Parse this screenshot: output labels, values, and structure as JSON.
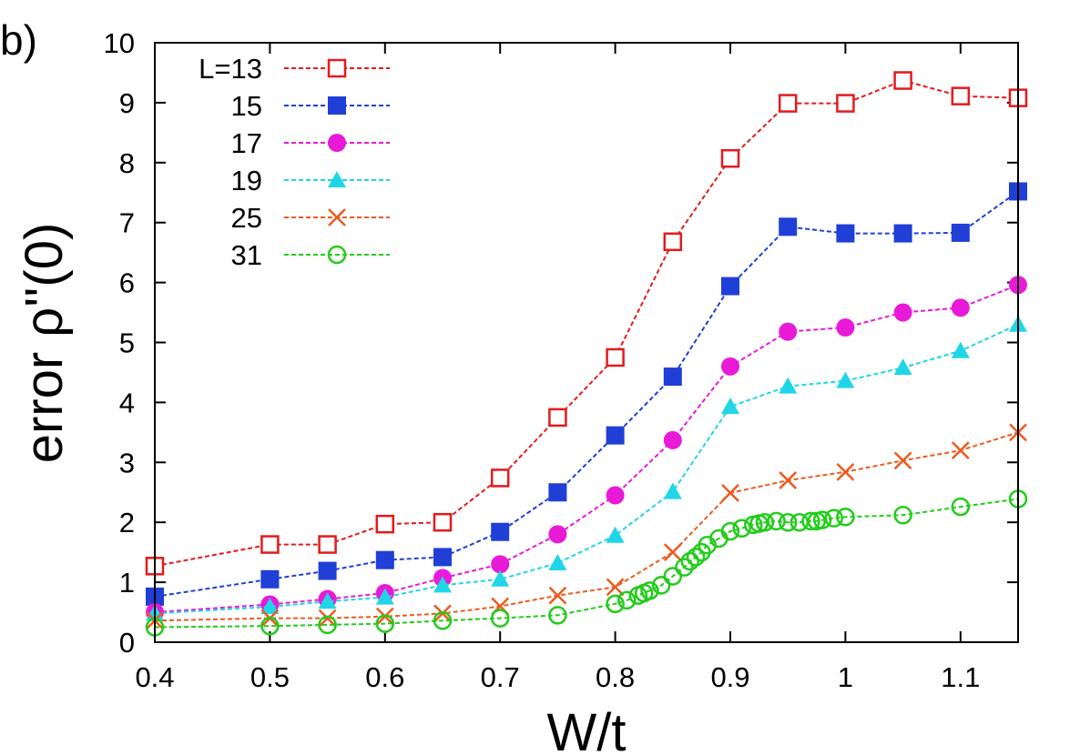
{
  "panel_label": "b)",
  "chart_data": {
    "type": "line",
    "xlabel": "W/t",
    "ylabel": "error ρ''(0)",
    "xlim": [
      0.4,
      1.15
    ],
    "ylim": [
      0,
      10
    ],
    "xticks": [
      0.4,
      0.5,
      0.6,
      0.7,
      0.8,
      0.9,
      1,
      1.1
    ],
    "xtick_labels": [
      "0.4",
      "0.5",
      "0.6",
      "0.7",
      "0.8",
      "0.9",
      "1",
      "1.1"
    ],
    "yticks": [
      0,
      1,
      2,
      3,
      4,
      5,
      6,
      7,
      8,
      9,
      10
    ],
    "ytick_labels": [
      "0",
      "1",
      "2",
      "3",
      "4",
      "5",
      "6",
      "7",
      "8",
      "9",
      "10"
    ],
    "grid": false,
    "legend_position": "top-left",
    "series": [
      {
        "name": "L=13",
        "color": "#e41a1c",
        "marker": "square-open",
        "x": [
          0.4,
          0.5,
          0.55,
          0.6,
          0.65,
          0.7,
          0.75,
          0.8,
          0.85,
          0.9,
          0.95,
          1.0,
          1.05,
          1.1,
          1.15
        ],
        "y": [
          1.27,
          1.63,
          1.63,
          1.97,
          2.0,
          2.74,
          3.75,
          4.75,
          6.68,
          8.07,
          8.99,
          8.99,
          9.37,
          9.11,
          9.08
        ]
      },
      {
        "name": "15",
        "color": "#1f3fd6",
        "marker": "square-filled",
        "x": [
          0.4,
          0.5,
          0.55,
          0.6,
          0.65,
          0.7,
          0.75,
          0.8,
          0.85,
          0.9,
          0.95,
          1.0,
          1.05,
          1.1,
          1.15
        ],
        "y": [
          0.76,
          1.05,
          1.19,
          1.37,
          1.42,
          1.84,
          2.5,
          3.45,
          4.43,
          5.94,
          6.93,
          6.82,
          6.82,
          6.83,
          7.52
        ]
      },
      {
        "name": "17",
        "color": "#e81ad8",
        "marker": "circle-filled",
        "x": [
          0.4,
          0.5,
          0.55,
          0.6,
          0.65,
          0.7,
          0.75,
          0.8,
          0.85,
          0.9,
          0.95,
          1.0,
          1.05,
          1.1,
          1.15
        ],
        "y": [
          0.5,
          0.63,
          0.72,
          0.82,
          1.07,
          1.3,
          1.8,
          2.45,
          3.37,
          4.6,
          5.18,
          5.25,
          5.5,
          5.58,
          5.96
        ]
      },
      {
        "name": "19",
        "color": "#1fd6e6",
        "marker": "triangle-filled",
        "x": [
          0.4,
          0.5,
          0.55,
          0.6,
          0.65,
          0.7,
          0.75,
          0.8,
          0.85,
          0.9,
          0.95,
          1.0,
          1.05,
          1.1,
          1.15
        ],
        "y": [
          0.48,
          0.59,
          0.68,
          0.75,
          0.95,
          1.05,
          1.32,
          1.78,
          2.51,
          3.93,
          4.27,
          4.36,
          4.58,
          4.86,
          5.3
        ]
      },
      {
        "name": "25",
        "color": "#ee5a1e",
        "marker": "cross",
        "x": [
          0.4,
          0.5,
          0.55,
          0.6,
          0.65,
          0.7,
          0.75,
          0.8,
          0.85,
          0.9,
          0.95,
          1.0,
          1.05,
          1.1,
          1.15
        ],
        "y": [
          0.36,
          0.4,
          0.4,
          0.43,
          0.48,
          0.6,
          0.78,
          0.92,
          1.5,
          2.49,
          2.7,
          2.84,
          3.03,
          3.2,
          3.5
        ]
      },
      {
        "name": "31",
        "color": "#22cc1a",
        "marker": "circle-open",
        "x": [
          0.4,
          0.5,
          0.55,
          0.6,
          0.65,
          0.7,
          0.75,
          0.8,
          0.81,
          0.82,
          0.825,
          0.83,
          0.84,
          0.85,
          0.86,
          0.865,
          0.87,
          0.875,
          0.88,
          0.89,
          0.9,
          0.91,
          0.92,
          0.925,
          0.93,
          0.94,
          0.95,
          0.96,
          0.97,
          0.975,
          0.98,
          0.99,
          1.0,
          1.05,
          1.1,
          1.15
        ],
        "y": [
          0.25,
          0.27,
          0.29,
          0.31,
          0.36,
          0.4,
          0.45,
          0.64,
          0.7,
          0.78,
          0.82,
          0.86,
          0.95,
          1.1,
          1.25,
          1.35,
          1.42,
          1.5,
          1.62,
          1.73,
          1.85,
          1.9,
          1.96,
          1.98,
          2.0,
          2.02,
          2.0,
          2.0,
          2.02,
          2.02,
          2.04,
          2.07,
          2.09,
          2.12,
          2.26,
          2.39
        ]
      }
    ]
  }
}
